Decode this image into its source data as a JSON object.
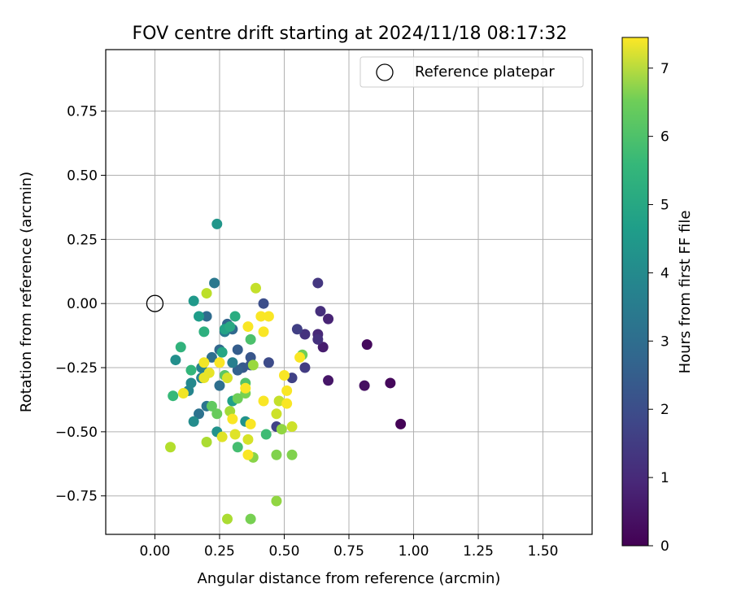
{
  "chart_data": {
    "type": "scatter",
    "title": "FOV centre drift starting at 2024/11/18 08:17:32",
    "xlabel": "Angular distance from reference (arcmin)",
    "ylabel": "Rotation from reference (arcmin)",
    "xlim": [
      -0.19,
      1.69
    ],
    "ylim": [
      -0.9,
      0.99
    ],
    "grid": true,
    "x_ticks": [
      0.0,
      0.25,
      0.5,
      0.75,
      1.0,
      1.25,
      1.5
    ],
    "x_tick_labels": [
      "0.00",
      "0.25",
      "0.50",
      "0.75",
      "1.00",
      "1.25",
      "1.50"
    ],
    "y_ticks": [
      -0.75,
      -0.5,
      -0.25,
      0.0,
      0.25,
      0.5,
      0.75
    ],
    "y_tick_labels": [
      "−0.75",
      "−0.50",
      "−0.25",
      "0.00",
      "0.25",
      "0.50",
      "0.75"
    ],
    "legend": {
      "placement": "top-right",
      "entries": [
        {
          "label": "Reference platepar",
          "marker": "open-circle"
        }
      ]
    },
    "reference_point": {
      "x": 0.0,
      "y": 0.0
    },
    "colorbar": {
      "label": "Hours from first FF file",
      "colormap": "viridis",
      "range": [
        0,
        7.45
      ],
      "ticks": [
        0,
        1,
        2,
        3,
        4,
        5,
        6,
        7
      ],
      "tick_labels": [
        "0",
        "1",
        "2",
        "3",
        "4",
        "5",
        "6",
        "7"
      ]
    },
    "points": [
      {
        "x": 0.95,
        "y": -0.47,
        "c": 0.05
      },
      {
        "x": 0.91,
        "y": -0.31,
        "c": 0.15
      },
      {
        "x": 0.82,
        "y": -0.16,
        "c": 0.2
      },
      {
        "x": 0.81,
        "y": -0.32,
        "c": 0.3
      },
      {
        "x": 0.67,
        "y": -0.3,
        "c": 0.45
      },
      {
        "x": 0.65,
        "y": -0.17,
        "c": 0.6
      },
      {
        "x": 0.67,
        "y": -0.06,
        "c": 0.75
      },
      {
        "x": 0.63,
        "y": -0.12,
        "c": 0.85
      },
      {
        "x": 0.64,
        "y": -0.03,
        "c": 1.0
      },
      {
        "x": 0.63,
        "y": -0.14,
        "c": 1.05
      },
      {
        "x": 0.58,
        "y": -0.12,
        "c": 1.1
      },
      {
        "x": 0.63,
        "y": 0.08,
        "c": 1.2
      },
      {
        "x": 0.58,
        "y": -0.25,
        "c": 1.3
      },
      {
        "x": 0.55,
        "y": -0.1,
        "c": 1.4
      },
      {
        "x": 0.53,
        "y": -0.29,
        "c": 1.45
      },
      {
        "x": 0.47,
        "y": -0.48,
        "c": 1.5
      },
      {
        "x": 0.44,
        "y": -0.23,
        "c": 1.7
      },
      {
        "x": 0.42,
        "y": 0.0,
        "c": 1.8
      },
      {
        "x": 0.37,
        "y": -0.24,
        "c": 1.9
      },
      {
        "x": 0.37,
        "y": -0.21,
        "c": 2.0
      },
      {
        "x": 0.34,
        "y": -0.25,
        "c": 2.1
      },
      {
        "x": 0.32,
        "y": -0.18,
        "c": 2.2
      },
      {
        "x": 0.32,
        "y": -0.26,
        "c": 2.3
      },
      {
        "x": 0.28,
        "y": -0.08,
        "c": 2.4
      },
      {
        "x": 0.3,
        "y": -0.1,
        "c": 2.5
      },
      {
        "x": 0.25,
        "y": -0.18,
        "c": 2.5
      },
      {
        "x": 0.2,
        "y": -0.05,
        "c": 2.6
      },
      {
        "x": 0.22,
        "y": -0.21,
        "c": 2.7
      },
      {
        "x": 0.25,
        "y": -0.32,
        "c": 2.7
      },
      {
        "x": 0.17,
        "y": -0.43,
        "c": 2.8
      },
      {
        "x": 0.2,
        "y": -0.4,
        "c": 2.9
      },
      {
        "x": 0.23,
        "y": 0.08,
        "c": 3.0
      },
      {
        "x": 0.27,
        "y": -0.11,
        "c": 3.1
      },
      {
        "x": 0.3,
        "y": -0.23,
        "c": 3.2
      },
      {
        "x": 0.18,
        "y": -0.25,
        "c": 3.3
      },
      {
        "x": 0.18,
        "y": -0.29,
        "c": 3.3
      },
      {
        "x": 0.13,
        "y": -0.34,
        "c": 3.4
      },
      {
        "x": 0.14,
        "y": -0.31,
        "c": 3.5
      },
      {
        "x": 0.15,
        "y": -0.46,
        "c": 3.6
      },
      {
        "x": 0.08,
        "y": -0.22,
        "c": 3.7
      },
      {
        "x": 0.24,
        "y": -0.5,
        "c": 3.8
      },
      {
        "x": 0.35,
        "y": -0.46,
        "c": 3.8
      },
      {
        "x": 0.24,
        "y": 0.31,
        "c": 3.9
      },
      {
        "x": 0.15,
        "y": 0.01,
        "c": 4.0
      },
      {
        "x": 0.17,
        "y": -0.05,
        "c": 4.1
      },
      {
        "x": 0.3,
        "y": -0.38,
        "c": 4.2
      },
      {
        "x": 0.27,
        "y": -0.1,
        "c": 4.3
      },
      {
        "x": 0.26,
        "y": -0.19,
        "c": 4.4
      },
      {
        "x": 0.29,
        "y": -0.09,
        "c": 4.5
      },
      {
        "x": 0.31,
        "y": -0.05,
        "c": 4.6
      },
      {
        "x": 0.19,
        "y": -0.11,
        "c": 4.7
      },
      {
        "x": 0.1,
        "y": -0.17,
        "c": 4.8
      },
      {
        "x": 0.14,
        "y": -0.26,
        "c": 4.9
      },
      {
        "x": 0.07,
        "y": -0.36,
        "c": 5.0
      },
      {
        "x": 0.43,
        "y": -0.51,
        "c": 5.1
      },
      {
        "x": 0.32,
        "y": -0.56,
        "c": 5.2
      },
      {
        "x": 0.37,
        "y": -0.14,
        "c": 5.3
      },
      {
        "x": 0.35,
        "y": -0.31,
        "c": 5.4
      },
      {
        "x": 0.27,
        "y": -0.28,
        "c": 5.5
      },
      {
        "x": 0.22,
        "y": -0.4,
        "c": 5.6
      },
      {
        "x": 0.24,
        "y": -0.43,
        "c": 5.7
      },
      {
        "x": 0.32,
        "y": -0.37,
        "c": 5.8
      },
      {
        "x": 0.35,
        "y": -0.35,
        "c": 5.9
      },
      {
        "x": 0.57,
        "y": -0.2,
        "c": 5.8
      },
      {
        "x": 0.37,
        "y": -0.84,
        "c": 5.9
      },
      {
        "x": 0.47,
        "y": -0.59,
        "c": 6.0
      },
      {
        "x": 0.53,
        "y": -0.59,
        "c": 6.0
      },
      {
        "x": 0.38,
        "y": -0.6,
        "c": 6.1
      },
      {
        "x": 0.47,
        "y": -0.77,
        "c": 6.2
      },
      {
        "x": 0.49,
        "y": -0.49,
        "c": 6.2
      },
      {
        "x": 0.38,
        "y": -0.24,
        "c": 6.3
      },
      {
        "x": 0.29,
        "y": -0.42,
        "c": 6.4
      },
      {
        "x": 0.28,
        "y": -0.84,
        "c": 6.5
      },
      {
        "x": 0.2,
        "y": -0.54,
        "c": 6.5
      },
      {
        "x": 0.06,
        "y": -0.56,
        "c": 6.6
      },
      {
        "x": 0.2,
        "y": 0.04,
        "c": 6.7
      },
      {
        "x": 0.39,
        "y": 0.06,
        "c": 6.8
      },
      {
        "x": 0.48,
        "y": -0.38,
        "c": 6.8
      },
      {
        "x": 0.53,
        "y": -0.48,
        "c": 6.9
      },
      {
        "x": 0.47,
        "y": -0.43,
        "c": 6.9
      },
      {
        "x": 0.28,
        "y": -0.29,
        "c": 7.0
      },
      {
        "x": 0.36,
        "y": -0.53,
        "c": 7.0
      },
      {
        "x": 0.26,
        "y": -0.52,
        "c": 7.1
      },
      {
        "x": 0.31,
        "y": -0.51,
        "c": 7.1
      },
      {
        "x": 0.19,
        "y": -0.29,
        "c": 7.2
      },
      {
        "x": 0.21,
        "y": -0.27,
        "c": 7.2
      },
      {
        "x": 0.19,
        "y": -0.23,
        "c": 7.3
      },
      {
        "x": 0.11,
        "y": -0.35,
        "c": 7.3
      },
      {
        "x": 0.25,
        "y": -0.23,
        "c": 7.4
      },
      {
        "x": 0.3,
        "y": -0.45,
        "c": 7.4
      },
      {
        "x": 0.36,
        "y": -0.59,
        "c": 7.4
      },
      {
        "x": 0.37,
        "y": -0.47,
        "c": 7.4
      },
      {
        "x": 0.36,
        "y": -0.09,
        "c": 7.4
      },
      {
        "x": 0.41,
        "y": -0.05,
        "c": 7.4
      },
      {
        "x": 0.44,
        "y": -0.05,
        "c": 7.4
      },
      {
        "x": 0.42,
        "y": -0.11,
        "c": 7.4
      },
      {
        "x": 0.42,
        "y": -0.38,
        "c": 7.4
      },
      {
        "x": 0.35,
        "y": -0.33,
        "c": 7.4
      },
      {
        "x": 0.5,
        "y": -0.28,
        "c": 7.4
      },
      {
        "x": 0.51,
        "y": -0.34,
        "c": 7.4
      },
      {
        "x": 0.51,
        "y": -0.39,
        "c": 7.4
      },
      {
        "x": 0.56,
        "y": -0.21,
        "c": 7.4
      }
    ]
  }
}
